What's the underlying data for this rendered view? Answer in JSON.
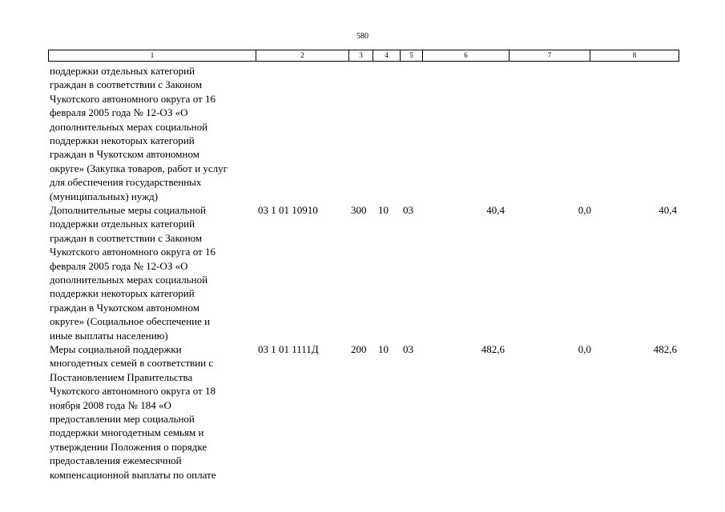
{
  "page_number": "580",
  "table": {
    "header": [
      "1",
      "2",
      "3",
      "4",
      "5",
      "6",
      "7",
      "8"
    ],
    "rows": [
      {
        "lines": [
          "поддержки отдельных категорий",
          "граждан в соответствии с Законом",
          "Чукотского автономного округа от 16",
          "февраля 2005 года № 12-ОЗ «О",
          "дополнительных мерах социальной",
          "поддержки некоторых категорий",
          "граждан в Чукотском автономном",
          "округе» (Закупка товаров, работ и услуг",
          "для обеспечения государственных",
          "(муниципальных) нужд)"
        ]
      },
      {
        "lines": [
          "Дополнительные меры социальной",
          "поддержки отдельных категорий",
          "граждан в соответствии с Законом",
          "Чукотского автономного округа от 16",
          "февраля 2005 года № 12-ОЗ «О",
          "дополнительных мерах социальной",
          "поддержки некоторых категорий",
          "граждан в Чукотском автономном",
          "округе» (Социальное обеспечение и",
          "иные выплаты населению)"
        ],
        "cells": [
          "03 1 01 10910",
          "300",
          "10",
          "03",
          "40,4",
          "0,0",
          "40,4"
        ]
      },
      {
        "lines": [
          "Меры социальной поддержки",
          "многодетных семей в соответствии с",
          "Постановлением Правительства",
          "Чукотского автономного округа от 18",
          "ноября 2008 года № 184 «О",
          "предоставлении мер социальной",
          "поддержки многодетным семьям и",
          "утверждении Положения о порядке",
          "предоставления ежемесячной",
          "компенсационной выплаты по оплате"
        ],
        "cells": [
          "03 1 01 1111Д",
          "200",
          "10",
          "03",
          "482,6",
          "0,0",
          "482,6"
        ]
      }
    ]
  }
}
